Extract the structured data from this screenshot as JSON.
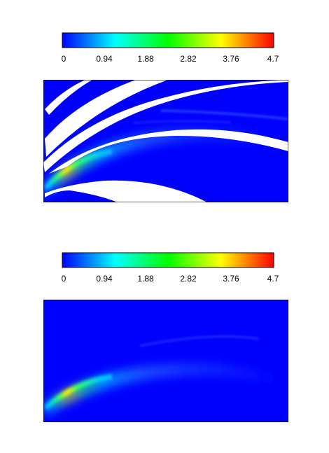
{
  "chart_data": [
    {
      "type": "heatmap",
      "colormap": [
        "#0000ff",
        "#00ffff",
        "#00ff00",
        "#ffff00",
        "#ff0000"
      ],
      "colorbar": {
        "min": 0,
        "max": 4.7,
        "ticks": [
          "0",
          "0.94",
          "1.88",
          "2.82",
          "3.76",
          "4.7"
        ]
      },
      "masked_color": "#ffffff",
      "background_value": 0,
      "has_masked_bands": true
    },
    {
      "type": "heatmap",
      "colormap": [
        "#0000ff",
        "#00ffff",
        "#00ff00",
        "#ffff00",
        "#ff0000"
      ],
      "colorbar": {
        "min": 0,
        "max": 4.7,
        "ticks": [
          "0",
          "0.94",
          "1.88",
          "2.82",
          "3.76",
          "4.7"
        ]
      },
      "background_value": 0,
      "has_masked_bands": false
    }
  ]
}
